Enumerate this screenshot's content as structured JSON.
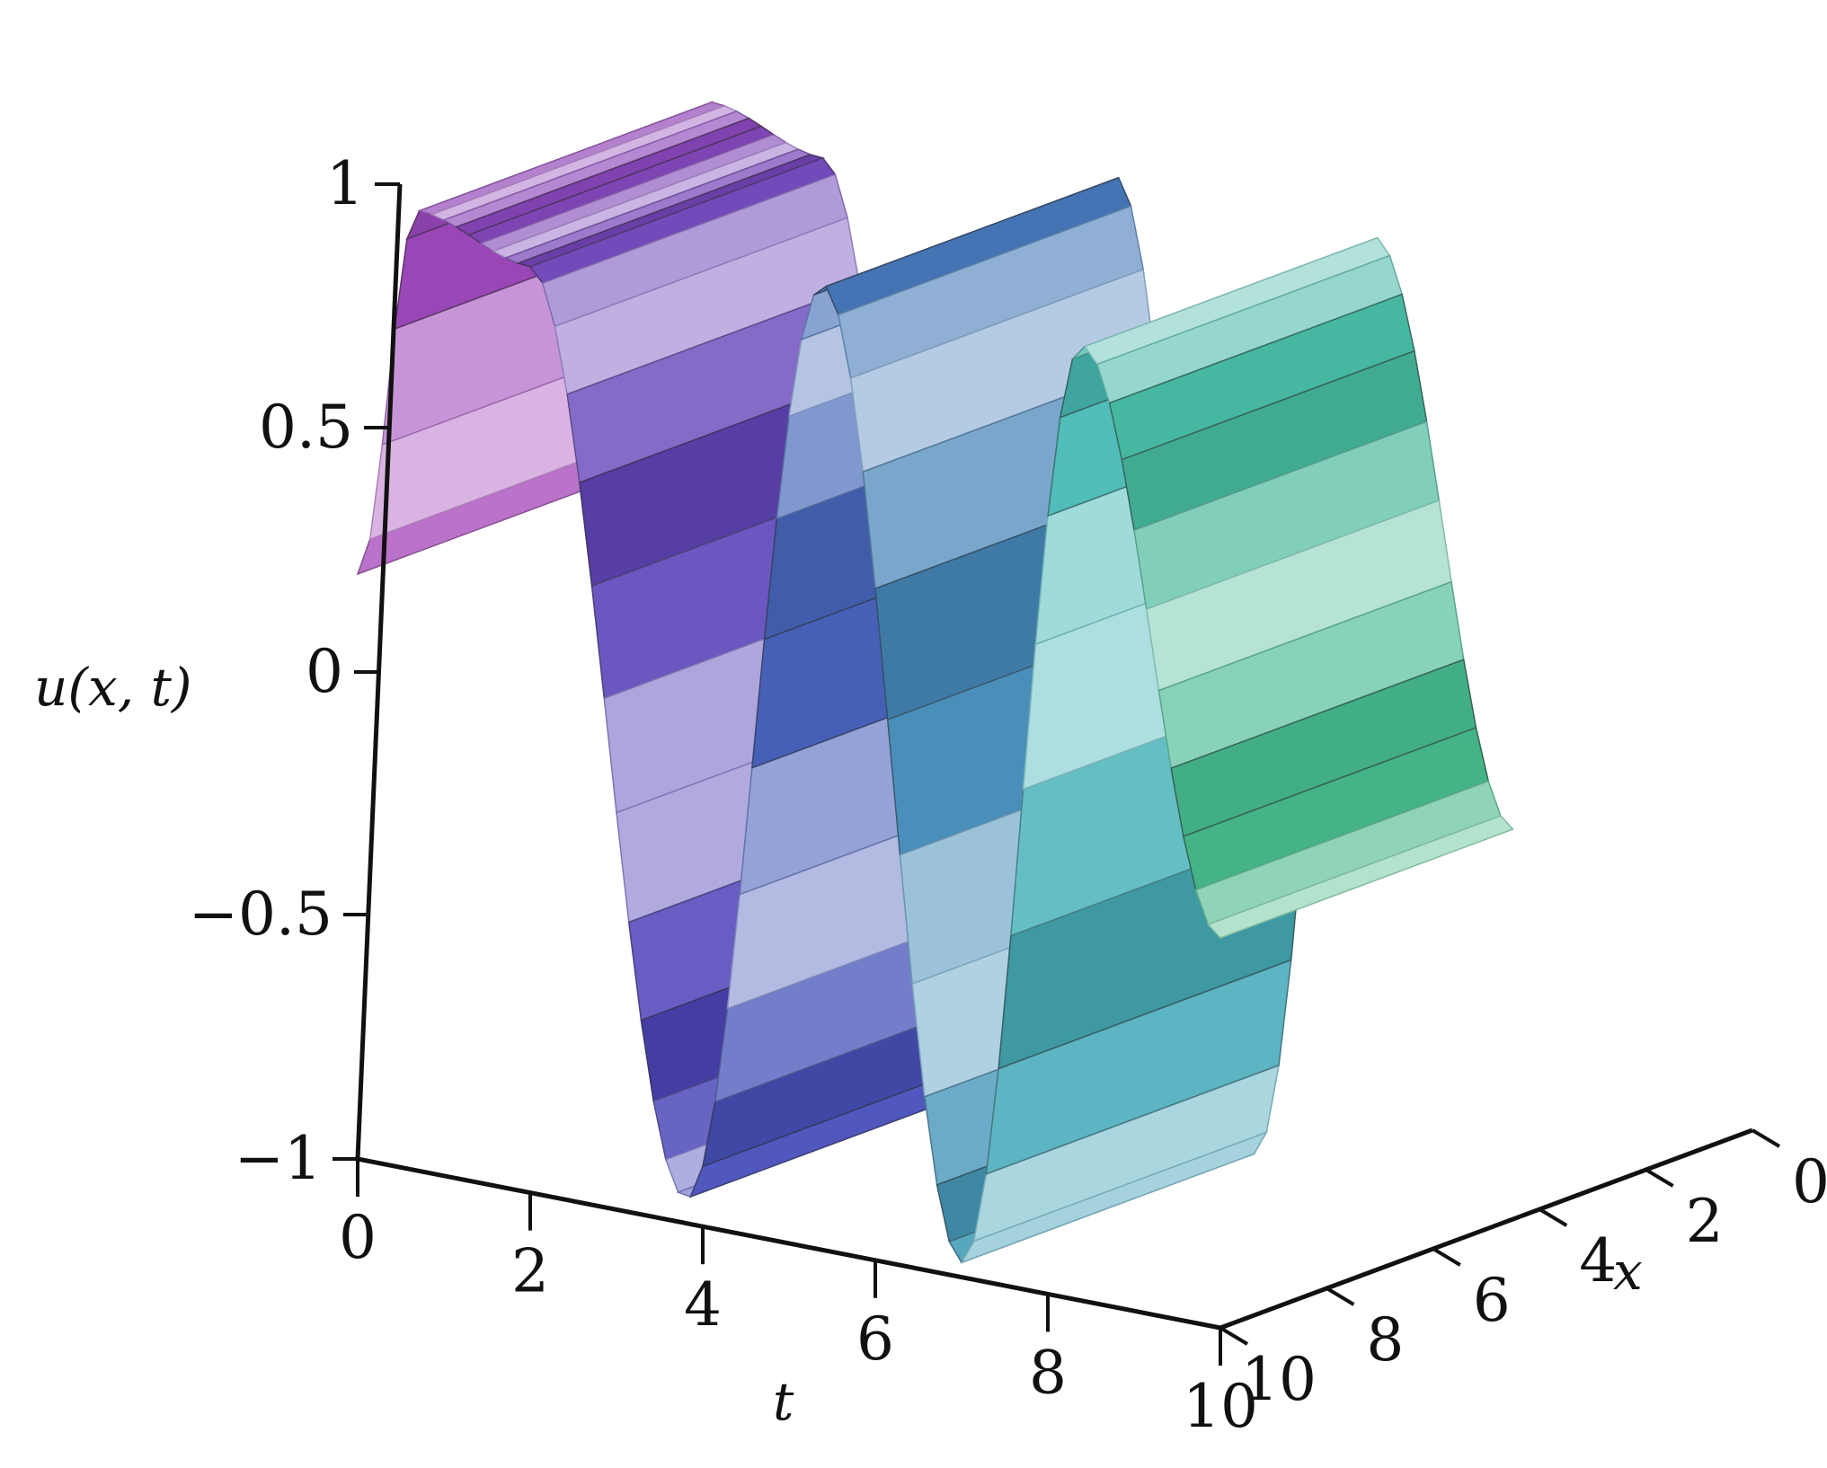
{
  "chart_data": {
    "type": "surface3d",
    "function_label": "u(x, t)",
    "x_axis": {
      "label": "x",
      "range": [
        0,
        10
      ],
      "ticks": [
        "0",
        "2",
        "4",
        "6",
        "8",
        "10"
      ]
    },
    "t_axis": {
      "label": "t",
      "range": [
        0,
        10
      ],
      "ticks": [
        "0",
        "2",
        "4",
        "6",
        "8",
        "10"
      ]
    },
    "z_axis": {
      "label": "u(x, t)",
      "range": [
        -1,
        1
      ],
      "ticks": [
        "-1",
        "-0.5",
        "0",
        "0.5",
        "1"
      ]
    },
    "surface_profile": {
      "description_values_t": [
        0,
        0.7,
        2.0,
        3.8,
        5.4,
        7.0,
        8.4,
        10.0
      ],
      "description_values_u": [
        0.2,
        0.97,
        0.9,
        -0.95,
        0.98,
        -0.97,
        0.96,
        -0.2
      ]
    },
    "grid": false,
    "legend": "none",
    "colors": {
      "start": "#d9a0e6",
      "mid": "#8a7fd0",
      "end": "#7fe0c0"
    }
  }
}
